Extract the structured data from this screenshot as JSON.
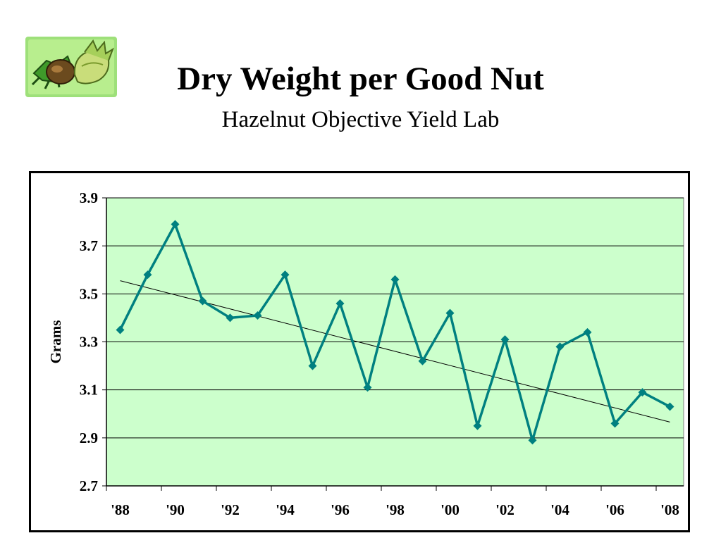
{
  "header": {
    "title": "Dry Weight per Good Nut",
    "subtitle": "Hazelnut Objective Yield Lab"
  },
  "logo": {
    "icon": "hazelnut-icon"
  },
  "colors": {
    "plot_background": "#ccffcc",
    "series_line": "#008080",
    "trend_line": "#000000",
    "gridline": "#000000"
  },
  "chart_data": {
    "type": "line",
    "title": "",
    "xlabel": "",
    "ylabel": "Grams",
    "ylim": [
      2.7,
      3.9
    ],
    "yticks": [
      "2.7",
      "2.9",
      "3.1",
      "3.3",
      "3.5",
      "3.7",
      "3.9"
    ],
    "xtick_labels": [
      "'88",
      "'90",
      "'92",
      "'94",
      "'96",
      "'98",
      "'00",
      "'02",
      "'04",
      "'06",
      "'08"
    ],
    "grid": "horizontal",
    "legend": "none",
    "series": [
      {
        "x": [
          1988,
          1989,
          1990,
          1991,
          1992,
          1993,
          1994,
          1995,
          1996,
          1997,
          1998,
          1999,
          2000,
          2001,
          2002,
          2003,
          2004,
          2005,
          2006,
          2007,
          2008
        ],
        "values": [
          3.35,
          3.58,
          3.79,
          3.47,
          3.4,
          3.41,
          3.58,
          3.2,
          3.46,
          3.11,
          3.56,
          3.22,
          3.42,
          2.95,
          3.31,
          2.89,
          3.28,
          3.34,
          2.96,
          3.09,
          3.03
        ],
        "marker": "diamond"
      }
    ],
    "trendline": {
      "type": "linear",
      "x": [
        1988,
        2008
      ],
      "values": [
        3.555,
        2.966
      ]
    }
  }
}
